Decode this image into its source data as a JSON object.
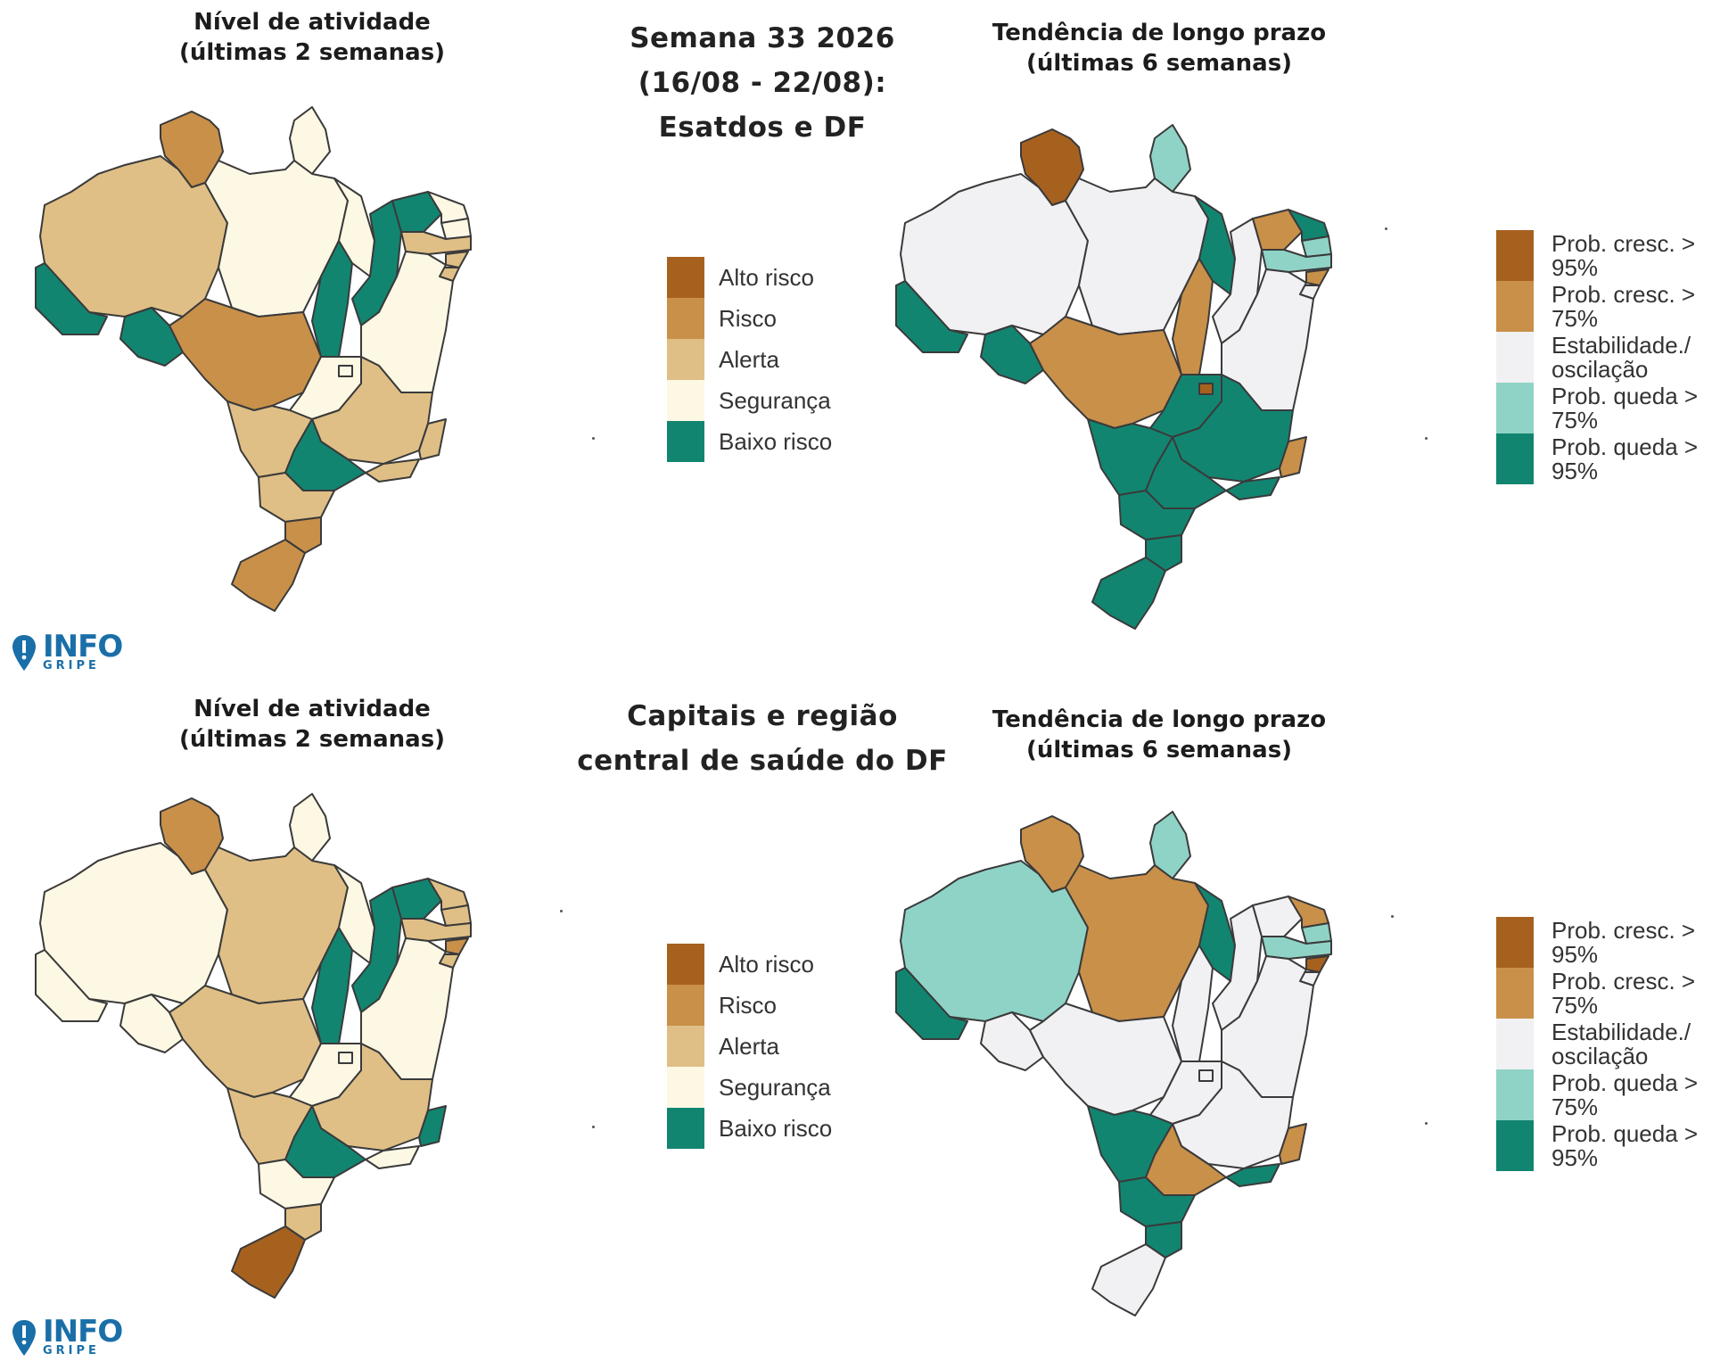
{
  "colors": {
    "alto_risco": "#a7611f",
    "risco": "#c9904a",
    "alerta": "#dfbf86",
    "seguranca": "#fdf8e4",
    "baixo_risco": "#128571",
    "cresc_95": "#a7611f",
    "cresc_75": "#c9904a",
    "estabilidade": "#f1f1f3",
    "queda_75": "#8fd3c6",
    "queda_95": "#128571"
  },
  "top": {
    "title_lines": [
      "Semana 33 2026",
      "(16/08 - 22/08):",
      "Esatdos e DF"
    ],
    "activity_title": [
      "Nível de atividade",
      "(últimas 2 semanas)"
    ],
    "trend_title": [
      "Tendência de longo prazo",
      "(últimas 6 semanas)"
    ]
  },
  "bottom": {
    "title_lines": [
      "Capitais e região",
      "central de saúde do DF"
    ],
    "activity_title": [
      "Nível de atividade",
      "(últimas 2 semanas)"
    ],
    "trend_title": [
      "Tendência de longo prazo",
      "(últimas 6 semanas)"
    ]
  },
  "activity_legend": [
    {
      "label": "Alto risco",
      "color": "#a7611f"
    },
    {
      "label": "Risco",
      "color": "#c9904a"
    },
    {
      "label": "Alerta",
      "color": "#dfbf86"
    },
    {
      "label": "Segurança",
      "color": "#fdf8e4"
    },
    {
      "label": "Baixo risco",
      "color": "#128571"
    }
  ],
  "trend_legend": [
    {
      "label": "Prob. cresc. > 95%",
      "color": "#a7611f"
    },
    {
      "label": "Prob. cresc. > 75%",
      "color": "#c9904a"
    },
    {
      "label": "Estabilidade./ oscilação",
      "color": "#f1f1f3"
    },
    {
      "label": "Prob. queda > 75%",
      "color": "#8fd3c6"
    },
    {
      "label": "Prob. queda > 95%",
      "color": "#128571"
    }
  ],
  "logo": {
    "main": "INFO",
    "sub": "GRIPE"
  },
  "maps": {
    "top_activity": {
      "RR": "risco",
      "AP": "seguranca",
      "AM": "alerta",
      "PA": "seguranca",
      "AC": "baixo_risco",
      "RO": "baixo_risco",
      "MT": "risco",
      "TO": "baixo_risco",
      "MA": "seguranca",
      "PI": "baixo_risco",
      "CE": "baixo_risco",
      "RN": "seguranca",
      "PB": "seguranca",
      "PE": "alerta",
      "AL": "alerta",
      "SE": "alerta",
      "BA": "seguranca",
      "GO": "seguranca",
      "DF": "seguranca",
      "MG": "alerta",
      "ES": "alerta",
      "MS": "alerta",
      "SP": "baixo_risco",
      "RJ": "alerta",
      "PR": "alerta",
      "SC": "risco",
      "RS": "risco"
    },
    "top_trend": {
      "RR": "cresc_95",
      "AP": "queda_75",
      "AM": "estabilidade",
      "PA": "estabilidade",
      "AC": "queda_95",
      "RO": "queda_95",
      "MT": "cresc_75",
      "TO": "cresc_75",
      "MA": "queda_95",
      "PI": "estabilidade",
      "CE": "cresc_75",
      "RN": "queda_95",
      "PB": "queda_75",
      "PE": "queda_75",
      "AL": "cresc_75",
      "SE": "estabilidade",
      "BA": "estabilidade",
      "GO": "queda_95",
      "DF": "cresc_95",
      "MG": "queda_95",
      "ES": "cresc_75",
      "MS": "queda_95",
      "SP": "queda_95",
      "RJ": "queda_95",
      "PR": "queda_95",
      "SC": "queda_95",
      "RS": "queda_95"
    },
    "bottom_activity": {
      "RR": "risco",
      "AP": "seguranca",
      "AM": "seguranca",
      "PA": "alerta",
      "AC": "seguranca",
      "RO": "seguranca",
      "MT": "alerta",
      "TO": "baixo_risco",
      "MA": "seguranca",
      "PI": "baixo_risco",
      "CE": "baixo_risco",
      "RN": "alerta",
      "PB": "alerta",
      "PE": "alerta",
      "AL": "risco",
      "SE": "alerta",
      "BA": "seguranca",
      "GO": "seguranca",
      "DF": "seguranca",
      "MG": "alerta",
      "ES": "baixo_risco",
      "MS": "alerta",
      "SP": "baixo_risco",
      "RJ": "seguranca",
      "PR": "seguranca",
      "SC": "alerta",
      "RS": "alto_risco"
    },
    "bottom_trend": {
      "RR": "risco_t",
      "AP": "queda_75",
      "AM": "queda_75",
      "PA": "cresc_75",
      "AC": "queda_95",
      "RO": "estabilidade",
      "MT": "estabilidade",
      "TO": "estabilidade",
      "MA": "queda_95",
      "PI": "estabilidade",
      "CE": "estabilidade",
      "RN": "cresc_75",
      "PB": "queda_75",
      "PE": "queda_75",
      "AL": "cresc_95",
      "SE": "estabilidade",
      "BA": "estabilidade",
      "GO": "estabilidade",
      "DF": "estabilidade",
      "MG": "estabilidade",
      "ES": "cresc_75",
      "MS": "queda_95",
      "SP": "cresc_75",
      "RJ": "queda_95",
      "PR": "queda_95",
      "SC": "queda_95",
      "RS": "estabilidade"
    }
  }
}
